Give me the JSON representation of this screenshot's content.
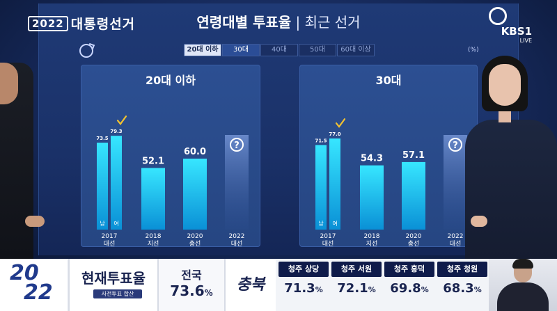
{
  "header": {
    "logo_year": "2022",
    "logo_text": "대통령선거",
    "title_main": "연령대별 투표율",
    "title_sep": " | ",
    "title_sub": "최근 선거",
    "broadcaster": "KBS",
    "channel": "1",
    "live": "LIVE"
  },
  "tabs": [
    {
      "label": "20대 이하",
      "state": "active"
    },
    {
      "label": "30대",
      "state": "selected"
    },
    {
      "label": "40대",
      "state": "normal"
    },
    {
      "label": "50대",
      "state": "normal"
    },
    {
      "label": "60대 이상",
      "state": "normal"
    }
  ],
  "unit_label": "(%)",
  "colors": {
    "bar_top": "#37e6ff",
    "bar_bottom": "#0a90d6",
    "check": "#f2c230",
    "panel": "#284a8a"
  },
  "chart_data": [
    {
      "type": "bar",
      "title": "20대 이하",
      "unit": "%",
      "ylim": [
        0,
        100
      ],
      "bars": [
        {
          "category": "2017\n대선",
          "sub": "남",
          "value": 73.5,
          "value_label": "73.5",
          "small": true
        },
        {
          "category": "2017\n대선",
          "sub": "여",
          "value": 79.3,
          "value_label": "79.3",
          "small": true,
          "check": true
        },
        {
          "category": "2018\n지선",
          "value": 52.1,
          "value_label": "52.1"
        },
        {
          "category": "2020\n총선",
          "value": 60.0,
          "value_label": "60.0"
        },
        {
          "category": "2022\n대선",
          "value": null,
          "value_label": "?",
          "unknown": true
        }
      ],
      "categories": [
        {
          "line1": "2017",
          "line2": "대선"
        },
        {
          "line1": "2018",
          "line2": "지선"
        },
        {
          "line1": "2020",
          "line2": "총선"
        },
        {
          "line1": "2022",
          "line2": "대선"
        }
      ]
    },
    {
      "type": "bar",
      "title": "30대",
      "unit": "%",
      "ylim": [
        0,
        100
      ],
      "bars": [
        {
          "category": "2017\n대선",
          "sub": "남",
          "value": 71.5,
          "value_label": "71.5",
          "small": true
        },
        {
          "category": "2017\n대선",
          "sub": "여",
          "value": 77.0,
          "value_label": "77.0",
          "small": true,
          "check": true
        },
        {
          "category": "2018\n지선",
          "value": 54.3,
          "value_label": "54.3"
        },
        {
          "category": "2020\n총선",
          "value": 57.1,
          "value_label": "57.1"
        },
        {
          "category": "2022\n대선",
          "value": null,
          "value_label": "?",
          "unknown": true
        }
      ],
      "categories": [
        {
          "line1": "2017",
          "line2": "대선"
        },
        {
          "line1": "2018",
          "line2": "지선"
        },
        {
          "line1": "2020",
          "line2": "총선"
        },
        {
          "line1": "2022",
          "line2": "대선"
        }
      ]
    }
  ],
  "ticker": {
    "year_top": "20",
    "year_bottom": "22",
    "label": "현재투표율",
    "label_sub": "사전투표 합산",
    "national_label": "전국",
    "national_value": "73.6",
    "national_unit": "%",
    "region": "충북",
    "districts": [
      {
        "name": "청주 상당",
        "value": "71.3",
        "unit": "%"
      },
      {
        "name": "청주 서원",
        "value": "72.1",
        "unit": "%"
      },
      {
        "name": "청주 흥덕",
        "value": "69.8",
        "unit": "%"
      },
      {
        "name": "청주 청원",
        "value": "68.3",
        "unit": "%"
      }
    ]
  }
}
